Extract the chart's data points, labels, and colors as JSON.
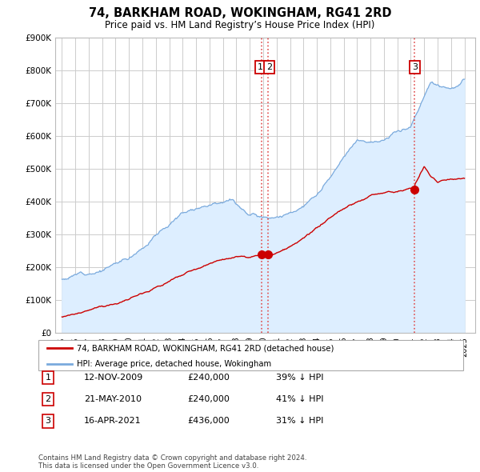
{
  "title": "74, BARKHAM ROAD, WOKINGHAM, RG41 2RD",
  "subtitle": "Price paid vs. HM Land Registry’s House Price Index (HPI)",
  "ylim": [
    0,
    900000
  ],
  "yticks": [
    0,
    100000,
    200000,
    300000,
    400000,
    500000,
    600000,
    700000,
    800000,
    900000
  ],
  "sale_year_nums": [
    2009.87,
    2010.37,
    2021.29
  ],
  "sale_prices": [
    240000,
    240000,
    436000
  ],
  "sale_labels": [
    "1",
    "2",
    "3"
  ],
  "vline_color": "#e05050",
  "vline_style": ":",
  "legend_entry1": "74, BARKHAM ROAD, WOKINGHAM, RG41 2RD (detached house)",
  "legend_entry2": "HPI: Average price, detached house, Wokingham",
  "table_rows": [
    [
      "1",
      "12-NOV-2009",
      "£240,000",
      "39% ↓ HPI"
    ],
    [
      "2",
      "21-MAY-2010",
      "£240,000",
      "41% ↓ HPI"
    ],
    [
      "3",
      "16-APR-2021",
      "£436,000",
      "31% ↓ HPI"
    ]
  ],
  "footer": "Contains HM Land Registry data © Crown copyright and database right 2024.\nThis data is licensed under the Open Government Licence v3.0.",
  "line_red_color": "#cc0000",
  "line_blue_color": "#7aaadd",
  "fill_blue_color": "#ddeeff",
  "grid_color": "#cccccc",
  "box_edge_color": "#cc0000"
}
